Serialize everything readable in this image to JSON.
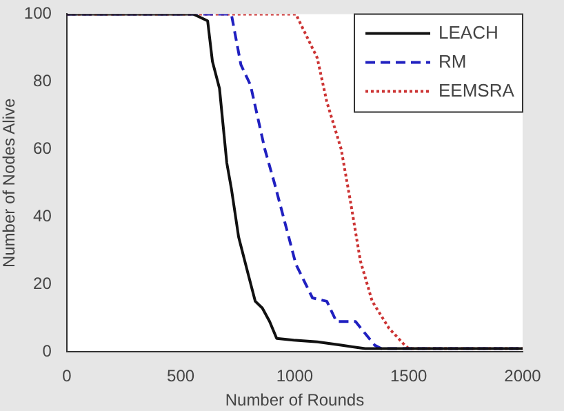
{
  "chart_data": {
    "type": "line",
    "xlabel": "Number of Rounds",
    "ylabel": "Number of Nodes Alive",
    "xlim": [
      0,
      2000
    ],
    "ylim": [
      0,
      100
    ],
    "xticks": [
      0,
      500,
      1000,
      1500,
      2000
    ],
    "yticks": [
      0,
      20,
      40,
      60,
      80,
      100
    ],
    "grid": false,
    "legend": "top right",
    "marker": "none",
    "series": [
      {
        "name": "LEACH",
        "color": "#111111",
        "line_style": "solid",
        "x": [
          0,
          555,
          618,
          639,
          670,
          702,
          723,
          754,
          796,
          827,
          858,
          890,
          921,
          995,
          1100,
          1204,
          1309,
          2000
        ],
        "values": [
          100,
          100,
          98,
          86,
          78,
          56,
          48,
          34,
          23,
          15,
          13,
          9,
          4,
          3.5,
          3,
          2,
          1,
          1
        ]
      },
      {
        "name": "RM",
        "color": "#2020c0",
        "line_style": "dashed",
        "x": [
          0,
          722,
          764,
          806,
          869,
          911,
          974,
          1005,
          1078,
          1141,
          1183,
          1267,
          1351,
          1380,
          2000
        ],
        "values": [
          100,
          100,
          85,
          79,
          60,
          50,
          34,
          26,
          16,
          15,
          9,
          9,
          2,
          1,
          1
        ]
      },
      {
        "name": "EEMSRA",
        "color": "#cc3333",
        "line_style": "dotted",
        "x": [
          0,
          1005,
          1099,
          1141,
          1204,
          1246,
          1288,
          1340,
          1414,
          1476,
          1500,
          2000
        ],
        "values": [
          100,
          100,
          87,
          74,
          60,
          44,
          27,
          15,
          7,
          2.5,
          1,
          1
        ]
      }
    ]
  }
}
